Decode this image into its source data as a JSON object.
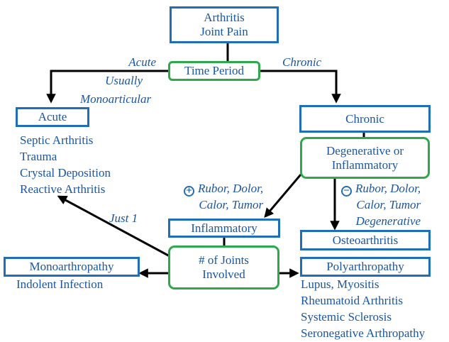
{
  "colors": {
    "text": "#1a56a0",
    "box_border": "#1f6fb8",
    "decision_border": "#2ea84a",
    "arrow": "#000000"
  },
  "nodes": {
    "top": {
      "line1": "Arthritis",
      "line2": "Joint Pain"
    },
    "time_period": "Time Period",
    "acute": "Acute",
    "chronic": "Chronic",
    "degen_or_inflam": {
      "line1": "Degenerative or",
      "line2": "Inflammatory"
    },
    "inflammatory": "Inflammatory",
    "osteoarthritis": "Osteoarthritis",
    "joints_involved": {
      "line1": "# of Joints",
      "line2": "Involved"
    },
    "monoarthropathy": "Monoarthropathy",
    "polyarthropathy": "Polyarthropathy"
  },
  "labels": {
    "acute_edge": [
      "Acute",
      "Usually",
      "Monoarticular"
    ],
    "chronic_edge": "Chronic",
    "positive_sign": "+",
    "negative_sign": "−",
    "inflammatory_signs": [
      "Rubor, Dolor,",
      "Calor, Tumor"
    ],
    "degenerative_signs": [
      "Rubor, Dolor,",
      "Calor, Tumor",
      "Degenerative"
    ],
    "just_one": "Just 1"
  },
  "lists": {
    "acute": [
      "Septic Arthritis",
      "Trauma",
      "Crystal Deposition",
      "Reactive Arthritis"
    ],
    "monoarthropathy": [
      "Indolent Infection"
    ],
    "polyarthropathy": [
      "Lupus, Myositis",
      "Rheumatoid Arthritis",
      "Systemic Sclerosis",
      "Seronegative Arthropathy"
    ]
  }
}
